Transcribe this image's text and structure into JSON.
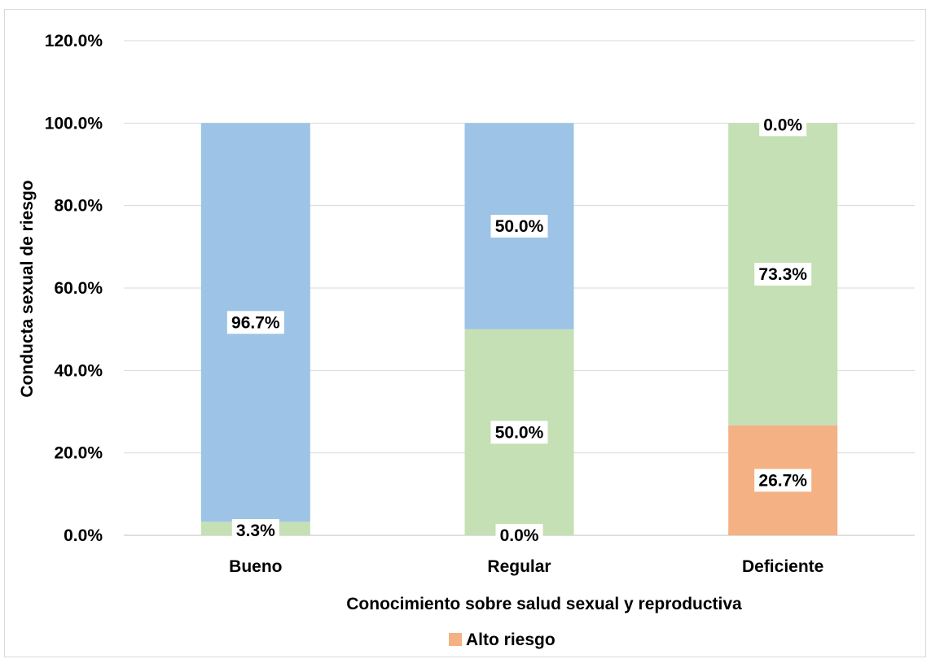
{
  "chart_data": {
    "type": "bar",
    "stacked": true,
    "title": "",
    "xlabel": "Conocimiento sobre salud sexual y reproductiva",
    "ylabel": "Conducta sexual de riesgo",
    "ylim": [
      0,
      120
    ],
    "yticks": [
      "0.0%",
      "20.0%",
      "40.0%",
      "60.0%",
      "80.0%",
      "100.0%",
      "120.0%"
    ],
    "grid": true,
    "legend_position": "bottom",
    "categories": [
      "Bueno",
      "Regular",
      "Deficiente"
    ],
    "series": [
      {
        "name": "Alto riesgo",
        "color": "#F4B183",
        "values": [
          0,
          0,
          26.7
        ],
        "labels": [
          "",
          "",
          "26.7%"
        ]
      },
      {
        "color": "#C5E0B4",
        "values": [
          3.3,
          50.0,
          73.3
        ],
        "labels": [
          "3.3%",
          "50.0%",
          "73.3%"
        ]
      },
      {
        "color": "#9DC3E6",
        "values": [
          96.7,
          50.0,
          0.0
        ],
        "labels": [
          "96.7%",
          "50.0%",
          "0.0%"
        ]
      }
    ],
    "extra_labels": [
      {
        "category": "Regular",
        "text": "0.0%"
      }
    ]
  }
}
